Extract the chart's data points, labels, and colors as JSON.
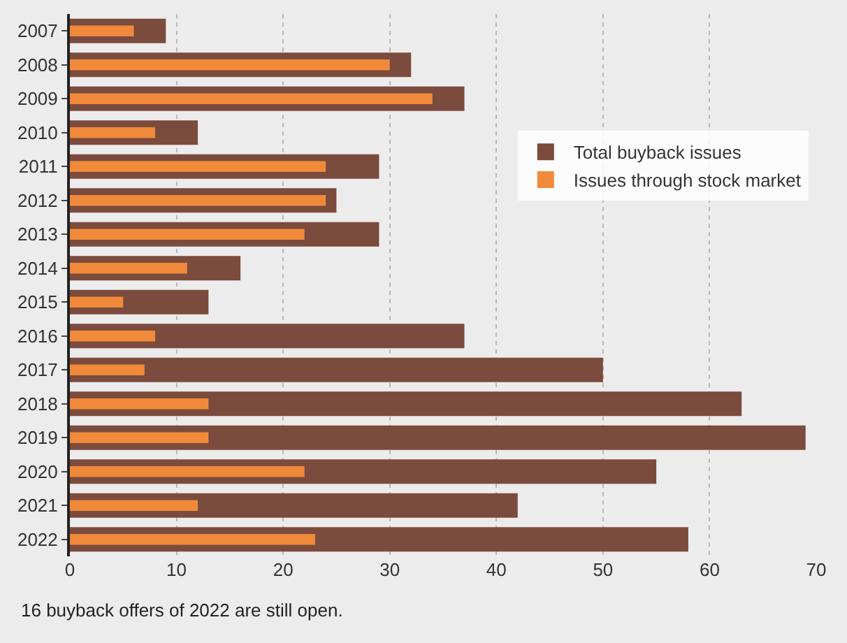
{
  "chart_data": {
    "type": "bar",
    "orientation": "horizontal",
    "categories": [
      "2007",
      "2008",
      "2009",
      "2010",
      "2011",
      "2012",
      "2013",
      "2014",
      "2015",
      "2016",
      "2017",
      "2018",
      "2019",
      "2020",
      "2021",
      "2022"
    ],
    "series": [
      {
        "name": "Total buyback issues",
        "color": "#7b4b3d",
        "values": [
          9,
          32,
          37,
          12,
          29,
          25,
          29,
          16,
          13,
          37,
          50,
          63,
          69,
          55,
          42,
          58
        ]
      },
      {
        "name": "Issues through stock market",
        "color": "#f08a3a",
        "values": [
          6,
          30,
          34,
          8,
          24,
          24,
          22,
          11,
          5,
          8,
          7,
          13,
          13,
          22,
          12,
          23
        ]
      }
    ],
    "xlim": [
      0,
      70
    ],
    "xticks": [
      0,
      10,
      20,
      30,
      40,
      50,
      60,
      70
    ],
    "grid": "x",
    "legend": "right",
    "annotations": [
      "16 buyback offers of 2022 are still open."
    ]
  }
}
